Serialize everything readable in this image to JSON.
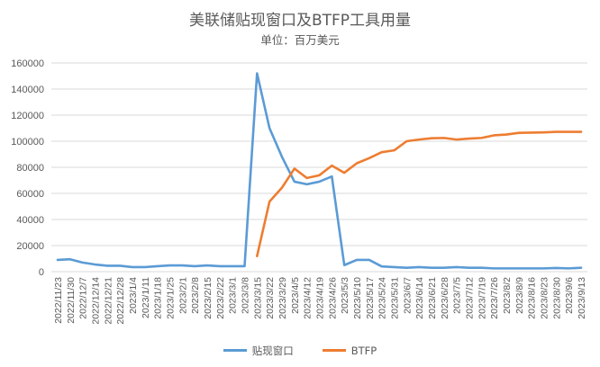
{
  "chart_data": {
    "type": "line",
    "title": "美联储贴现窗口及BTFP工具用量",
    "subtitle": "单位：百万美元",
    "xlabel": "",
    "ylabel": "",
    "ylim": [
      0,
      160000
    ],
    "yticks": [
      0,
      20000,
      40000,
      60000,
      80000,
      100000,
      120000,
      140000,
      160000
    ],
    "grid": true,
    "legend_position": "bottom",
    "x": [
      "2022/11/23",
      "2022/11/30",
      "2022/12/7",
      "2022/12/14",
      "2022/12/21",
      "2022/12/28",
      "2023/1/4",
      "2023/1/11",
      "2023/1/18",
      "2023/1/25",
      "2023/2/1",
      "2023/2/8",
      "2023/2/15",
      "2023/2/22",
      "2023/3/1",
      "2023/3/8",
      "2023/3/15",
      "2023/3/22",
      "2023/3/29",
      "2023/4/5",
      "2023/4/12",
      "2023/4/19",
      "2023/4/26",
      "2023/5/3",
      "2023/5/10",
      "2023/5/17",
      "2023/5/24",
      "2023/5/31",
      "2023/6/7",
      "2023/6/14",
      "2023/6/21",
      "2023/6/28",
      "2023/7/5",
      "2023/7/12",
      "2023/7/19",
      "2023/7/26",
      "2023/8/2",
      "2023/8/9",
      "2023/8/16",
      "2023/8/23",
      "2023/8/30",
      "2023/9/6",
      "2023/9/13"
    ],
    "series": [
      {
        "name": "贴现窗口",
        "color": "#5b9bd5",
        "values": [
          9000,
          9500,
          7000,
          5500,
          4500,
          4500,
          3500,
          3500,
          4200,
          4800,
          4800,
          4200,
          4800,
          4200,
          4200,
          4200,
          152000,
          110000,
          88000,
          69000,
          67000,
          69000,
          73000,
          5000,
          9000,
          9000,
          4000,
          3500,
          3000,
          3500,
          3000,
          3000,
          3500,
          3000,
          3000,
          2500,
          2500,
          2500,
          2500,
          2500,
          2800,
          2500,
          3000
        ]
      },
      {
        "name": "BTFP",
        "color": "#ed7d31",
        "values": [
          null,
          null,
          null,
          null,
          null,
          null,
          null,
          null,
          null,
          null,
          null,
          null,
          null,
          null,
          null,
          null,
          11900,
          53700,
          64400,
          79000,
          71800,
          73900,
          81300,
          75800,
          83100,
          87000,
          91600,
          93000,
          100000,
          101300,
          102300,
          102500,
          101300,
          102000,
          102500,
          104500,
          105100,
          106400,
          106600,
          106800,
          107200,
          107200,
          107200
        ]
      }
    ]
  }
}
